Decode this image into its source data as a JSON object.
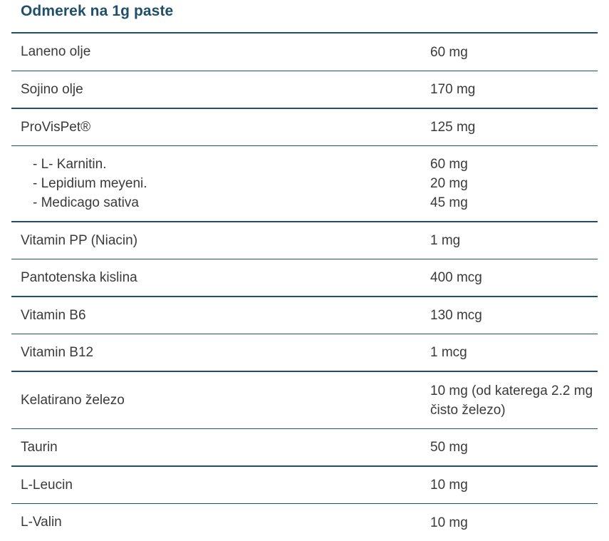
{
  "title": "Odmerek na 1g paste",
  "rows": [
    {
      "name": "Laneno olje",
      "amount": "60 mg"
    },
    {
      "name": "Sojino olje",
      "amount": "170 mg"
    },
    {
      "name": "ProVisPet®",
      "amount": "125 mg"
    },
    {
      "sub": [
        {
          "name": "- L- Karnitin.",
          "amount": "60 mg"
        },
        {
          "name": "- Lepidium meyeni.",
          "amount": "20 mg"
        },
        {
          "name": "- Medicago sativa",
          "amount": "45 mg"
        }
      ]
    },
    {
      "name": "Vitamin PP (Niacin)",
      "amount": "1 mg"
    },
    {
      "name": "Pantotenska kislina",
      "amount": "400 mcg"
    },
    {
      "name": "Vitamin B6",
      "amount": "130 mcg"
    },
    {
      "name": "Vitamin B12",
      "amount": "1 mcg"
    },
    {
      "name": "Kelatirano železo",
      "amount": "10 mg (od katerega 2.2 mg čisto železo)"
    },
    {
      "name": "Taurin",
      "amount": "50 mg"
    },
    {
      "name": "L-Leucin",
      "amount": "10 mg"
    },
    {
      "name": "L-Valin",
      "amount": "10 mg"
    }
  ],
  "colors": {
    "accent": "#1f4f6a",
    "text": "#3a3a3a"
  }
}
